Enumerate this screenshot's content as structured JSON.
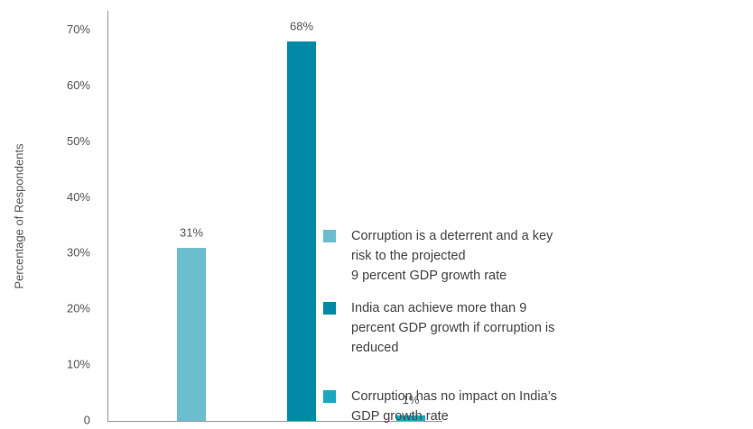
{
  "chart_data": {
    "type": "bar",
    "y_label": "Percentage of Respondents",
    "categories": [
      null,
      null,
      null
    ],
    "values": [
      31,
      68,
      1
    ],
    "value_labels": [
      "31%",
      "68%",
      "1%"
    ],
    "colors": [
      "#6bbdd0",
      "#0088a6",
      "#19a8c0"
    ],
    "ylim": [
      0,
      73.5
    ],
    "yticks": [
      0,
      {
        "value": 10,
        "label": "10%"
      },
      {
        "value": 20,
        "label": "20%"
      },
      {
        "value": 30,
        "label": "30%"
      },
      {
        "value": 40,
        "label": "40%"
      },
      {
        "value": 50,
        "label": "50%"
      },
      {
        "value": 60,
        "label": "60%"
      },
      {
        "value": 70,
        "label": "70%"
      }
    ],
    "grid": false,
    "legend": [
      [
        "Corruption is a deterrent and a key",
        "risk to the projected",
        "9 percent GDP growth rate"
      ],
      [
        "India can achieve more than 9",
        "percent GDP growth if corruption is",
        "reduced"
      ],
      [
        "Corruption has no impact on India’s",
        "GDP growth rate"
      ]
    ]
  }
}
